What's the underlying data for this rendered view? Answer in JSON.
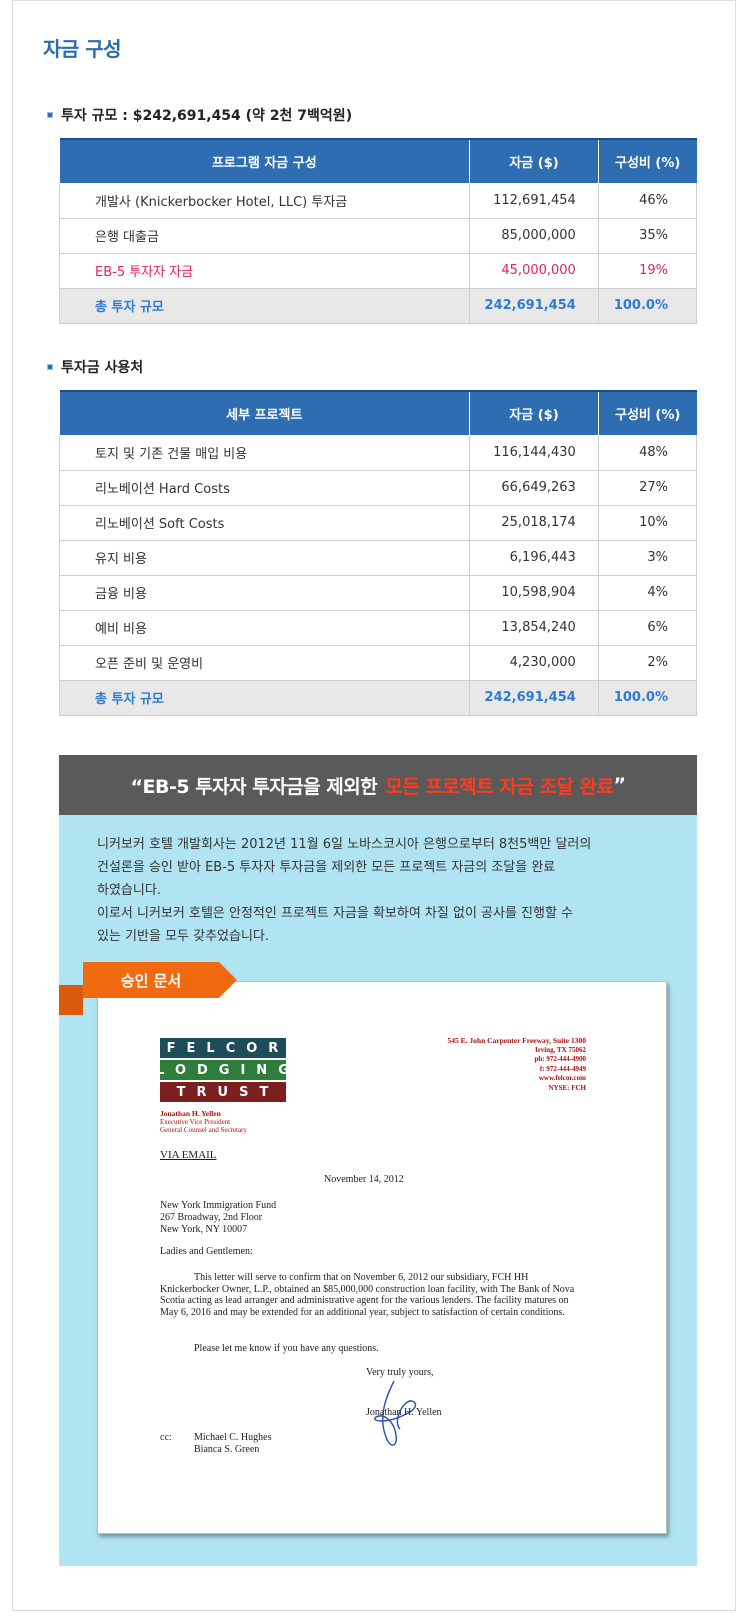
{
  "page": {
    "title": "자금 구성"
  },
  "section1": {
    "heading": "투자 규모 : $242,691,454 (약 2천 7백억원)",
    "headers": [
      "프로그램 자금 구성",
      "자금 ($)",
      "구성비 (%)"
    ],
    "rows": [
      {
        "name": "개발사 (Knickerbocker Hotel, LLC) 투자금",
        "amount": "112,691,454",
        "pct": "46%"
      },
      {
        "name": "은행 대출금",
        "amount": "85,000,000",
        "pct": "35%"
      },
      {
        "name": "EB-5 투자자 자금",
        "amount": "45,000,000",
        "pct": "19%"
      }
    ],
    "total": {
      "name": "총 투자 규모",
      "amount": "242,691,454",
      "pct": "100.0%"
    }
  },
  "section2": {
    "heading": "투자금 사용처",
    "headers": [
      "세부 프로젝트",
      "자금 ($)",
      "구성비 (%)"
    ],
    "rows": [
      {
        "name": "토지 및 기존 건물 매입 비용",
        "amount": "116,144,430",
        "pct": "48%"
      },
      {
        "name": "리노베이션 Hard Costs",
        "amount": "66,649,263",
        "pct": "27%"
      },
      {
        "name": "리노베이션 Soft Costs",
        "amount": "25,018,174",
        "pct": "10%"
      },
      {
        "name": "유지 비용",
        "amount": "6,196,443",
        "pct": "3%"
      },
      {
        "name": "금융 비용",
        "amount": "10,598,904",
        "pct": "4%"
      },
      {
        "name": "예비 비용",
        "amount": "13,854,240",
        "pct": "6%"
      },
      {
        "name": "오픈 준비 및 운영비",
        "amount": "4,230,000",
        "pct": "2%"
      }
    ],
    "total": {
      "name": "총 투자 규모",
      "amount": "242,691,454",
      "pct": "100.0%"
    }
  },
  "banner": {
    "text_main": "“EB-5 투자자 투자금을 제외한",
    "text_accent": "모든 프로젝트 자금 조달 완료",
    "text_end": "”",
    "accent_color": "#ff3b1f"
  },
  "description": {
    "line1": "니커보커 호텔 개발회사는 2012년 11월 6일 노바스코시아 은행으로부터 8천5백만 달러의",
    "line2": "건설론을 승인 받아 EB-5 투자자 투자금을 제외한 모든 프로젝트 자금의 조달을 완료",
    "line3": "하였습니다.",
    "line4": "이로서 니커보커 호텔은 안정적인 프로젝트 자금을 확보하여 차질 없이 공사를 진행할 수",
    "line5": "있는 기반을 모두 갖추었습니다."
  },
  "approval_tab": {
    "label": "승인 문서"
  },
  "letter": {
    "logo": [
      "FELCOR",
      "LODGING",
      "TRUST"
    ],
    "sender_name": "Jonathan H. Yellen",
    "sender_title1": "Executive Vice President",
    "sender_title2": "General Counsel and Secretary",
    "address": [
      "545 E. John Carpenter Freeway, Suite 1300",
      "Irving, TX 75062",
      "ph: 972-444-4900",
      "f: 972-444-4949",
      "www.felcor.com",
      "NYSE: FCH"
    ],
    "via": "VIA EMAIL",
    "date": "November 14, 2012",
    "recipient": [
      "New York Immigration Fund",
      "267 Broadway, 2nd Floor",
      "New York, NY 10007"
    ],
    "greeting": "Ladies and Gentlemen:",
    "body1": "This letter will serve to confirm that on November 6, 2012 our subsidiary, FCH HH Knickerbocker Owner, L.P., obtained an $85,000,000 construction loan facility, with The Bank of Nova Scotia acting as lead arranger and administrative agent for the various lenders.  The facility matures on May 6, 2016 and may be extended for an additional year, subject to satisfaction of certain conditions.",
    "body2": "Please let me know if you have any questions.",
    "closing": "Very truly yours,",
    "signer": "Jonathan H. Yellen",
    "cc_label": "cc:",
    "cc_names": [
      "Michael C. Hughes",
      "Bianca S. Green"
    ]
  }
}
